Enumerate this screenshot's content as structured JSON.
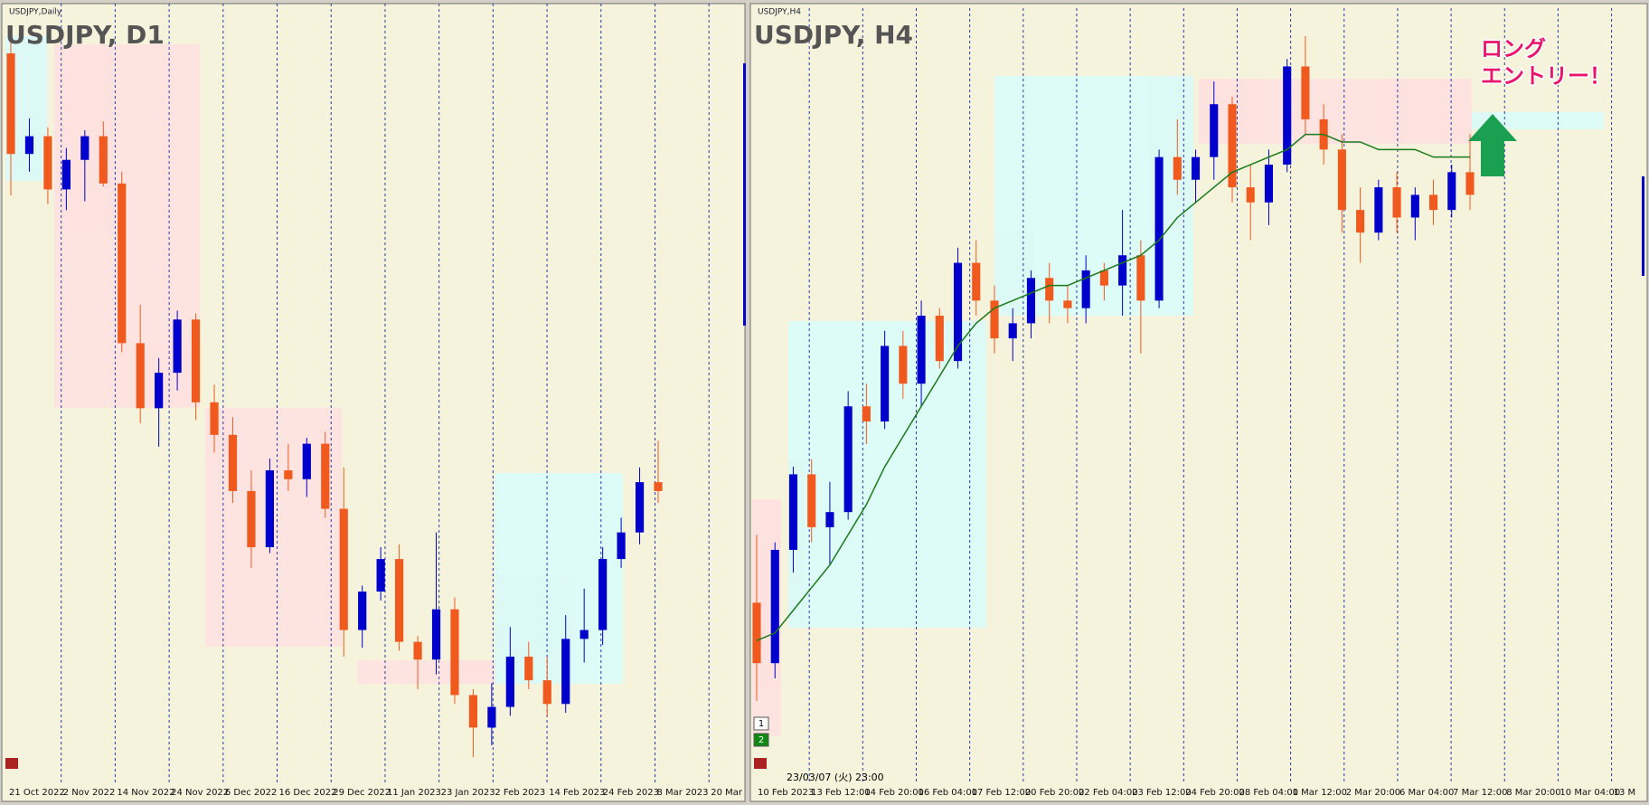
{
  "chart_data": [
    {
      "type": "candlestick",
      "window_label": "USDJPY,Daily",
      "title": "USDJPY, D1",
      "time_labels": [
        "21 Oct 2022",
        "2 Nov 2022",
        "14 Nov 2022",
        "24 Nov 2022",
        "6 Dec 2022",
        "16 Dec 2022",
        "29 Dec 2022",
        "11 Jan 2023",
        "23 Jan 2023",
        "2 Feb 2023",
        "14 Feb 2023",
        "24 Feb 2023",
        "8 Mar 2023",
        "20 Mar"
      ],
      "up_color": "#0000cc",
      "down_color": "#f05a1e",
      "grid": true,
      "ylim": [
        126.5,
        152.5
      ],
      "open": [
        151.0,
        147.6,
        148.2,
        146.4,
        147.4,
        148.2,
        146.6,
        141.2,
        139.0,
        140.2,
        142.0,
        139.2,
        138.1,
        136.2,
        134.3,
        136.9,
        136.6,
        137.8,
        135.6,
        131.5,
        132.8,
        133.9,
        131.1,
        130.5,
        132.2,
        129.3,
        128.2,
        128.9,
        130.6,
        129.8,
        129.0,
        131.2,
        131.5,
        133.9,
        134.8,
        136.5
      ],
      "high": [
        151.9,
        148.8,
        148.5,
        147.8,
        148.4,
        148.7,
        147.0,
        142.5,
        140.7,
        142.3,
        142.2,
        139.8,
        138.7,
        136.9,
        137.3,
        137.8,
        138.0,
        138.2,
        137.0,
        133.0,
        134.3,
        134.4,
        131.3,
        134.8,
        132.6,
        129.5,
        129.7,
        131.6,
        131.1,
        130.6,
        132.0,
        132.9,
        134.3,
        135.3,
        137.0,
        137.9
      ],
      "low": [
        146.2,
        147.0,
        145.9,
        145.7,
        146.0,
        146.5,
        140.9,
        138.5,
        137.7,
        139.6,
        138.6,
        137.5,
        135.8,
        133.6,
        134.1,
        136.2,
        136.0,
        135.3,
        130.6,
        130.9,
        132.5,
        130.8,
        129.5,
        130.0,
        129.0,
        127.2,
        127.6,
        128.6,
        129.5,
        128.6,
        128.7,
        130.4,
        131.0,
        133.6,
        134.4,
        135.8
      ],
      "close": [
        147.6,
        148.2,
        146.4,
        147.4,
        148.2,
        146.6,
        141.2,
        139.0,
        140.2,
        142.0,
        139.2,
        138.1,
        136.2,
        134.3,
        136.9,
        136.6,
        137.8,
        135.6,
        131.5,
        132.8,
        133.9,
        131.1,
        130.5,
        132.2,
        129.3,
        128.2,
        128.9,
        130.6,
        129.8,
        129.0,
        131.2,
        131.5,
        133.9,
        134.8,
        136.5,
        136.2
      ]
    },
    {
      "type": "candlestick",
      "window_label": "USDJPY,H4",
      "title": "USDJPY, H4",
      "time_labels": [
        "10 Feb 2023",
        "13 Feb 12:00",
        "14 Feb 20:00",
        "16 Feb 04:00",
        "17 Feb 12:00",
        "20 Feb 20:00",
        "22 Feb 04:00",
        "23 Feb 12:00",
        "24 Feb 20:00",
        "28 Feb 04:00",
        "1 Mar 12:00",
        "2 Mar 20:00",
        "6 Mar 04:00",
        "7 Mar 12:00",
        "8 Mar 20:00",
        "10 Mar 04:00",
        "13 M"
      ],
      "up_color": "#0000cc",
      "down_color": "#f05a1e",
      "ma_color": "#1a7a1a",
      "grid": true,
      "ylim": [
        129.0,
        138.4
      ],
      "open": [
        130.6,
        129.8,
        131.3,
        132.3,
        131.6,
        131.8,
        133.2,
        133.0,
        134.0,
        133.5,
        134.4,
        133.8,
        135.1,
        134.6,
        134.1,
        134.3,
        134.9,
        134.6,
        134.5,
        135.0,
        134.8,
        135.2,
        134.6,
        136.5,
        136.2,
        136.5,
        137.2,
        136.1,
        135.9,
        136.4,
        137.7,
        137.0,
        136.6,
        135.8,
        135.5,
        136.1,
        135.7,
        136.0,
        135.8,
        136.3
      ],
      "high": [
        131.5,
        131.4,
        132.4,
        132.5,
        132.2,
        133.4,
        133.5,
        134.2,
        134.2,
        134.6,
        134.5,
        135.3,
        135.4,
        134.8,
        134.5,
        135.0,
        135.1,
        134.8,
        135.2,
        135.1,
        135.8,
        135.4,
        136.6,
        137.0,
        136.6,
        137.5,
        137.3,
        136.4,
        136.6,
        137.8,
        138.1,
        137.2,
        136.8,
        136.1,
        136.2,
        136.3,
        136.1,
        136.2,
        136.4,
        136.8
      ],
      "low": [
        129.3,
        129.6,
        131.0,
        131.4,
        131.1,
        131.7,
        132.7,
        132.9,
        133.3,
        133.2,
        133.7,
        133.7,
        134.4,
        133.9,
        133.8,
        134.1,
        134.3,
        134.3,
        134.3,
        134.6,
        134.4,
        133.9,
        134.5,
        136.0,
        135.9,
        136.2,
        135.9,
        135.4,
        135.6,
        136.3,
        136.8,
        136.4,
        135.5,
        135.1,
        135.4,
        135.5,
        135.4,
        135.6,
        135.7,
        135.8
      ],
      "close": [
        129.8,
        131.3,
        132.3,
        131.6,
        131.8,
        133.2,
        133.0,
        134.0,
        133.5,
        134.4,
        133.8,
        135.1,
        134.6,
        134.1,
        134.3,
        134.9,
        134.6,
        134.5,
        135.0,
        134.8,
        135.2,
        134.6,
        136.5,
        136.2,
        136.5,
        137.2,
        136.1,
        135.9,
        136.4,
        137.7,
        137.0,
        136.6,
        135.8,
        135.5,
        136.1,
        135.7,
        136.0,
        135.8,
        136.3,
        136.0
      ],
      "ma": [
        130.1,
        130.2,
        130.5,
        130.8,
        131.1,
        131.5,
        131.9,
        132.4,
        132.8,
        133.2,
        133.6,
        134.0,
        134.3,
        134.5,
        134.6,
        134.7,
        134.8,
        134.8,
        134.9,
        135.0,
        135.1,
        135.2,
        135.4,
        135.7,
        135.9,
        136.1,
        136.3,
        136.4,
        136.5,
        136.6,
        136.8,
        136.8,
        136.7,
        136.7,
        136.6,
        136.6,
        136.6,
        136.5,
        136.5,
        136.5
      ]
    }
  ],
  "annotation": [
    "ロング",
    "エントリー！"
  ],
  "crosshair_time": "23/03/07 (火) 23:00",
  "window_buttons": [
    "1",
    "2"
  ]
}
